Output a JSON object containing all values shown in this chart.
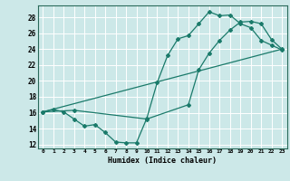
{
  "xlabel": "Humidex (Indice chaleur)",
  "ylabel": "",
  "bg_color": "#cce8e8",
  "grid_color": "#ffffff",
  "line_color": "#1a7a6a",
  "xlim": [
    -0.5,
    23.5
  ],
  "ylim": [
    11.5,
    29.5
  ],
  "xticks": [
    0,
    1,
    2,
    3,
    4,
    5,
    6,
    7,
    8,
    9,
    10,
    11,
    12,
    13,
    14,
    15,
    16,
    17,
    18,
    19,
    20,
    21,
    22,
    23
  ],
  "yticks": [
    12,
    14,
    16,
    18,
    20,
    22,
    24,
    26,
    28
  ],
  "series1_x": [
    0,
    1,
    2,
    3,
    4,
    5,
    6,
    7,
    8,
    9,
    10,
    11,
    12,
    13,
    14,
    15,
    16,
    17,
    18,
    19,
    20,
    21,
    22,
    23
  ],
  "series1_y": [
    16.1,
    16.4,
    16.1,
    15.2,
    14.3,
    14.5,
    13.5,
    12.3,
    12.2,
    12.2,
    15.3,
    19.8,
    23.2,
    25.3,
    25.7,
    27.2,
    28.7,
    28.2,
    28.3,
    27.2,
    26.7,
    25.1,
    24.5,
    23.9
  ],
  "series2_x": [
    0,
    3,
    10,
    14,
    15,
    16,
    17,
    18,
    19,
    20,
    21,
    22,
    23
  ],
  "series2_y": [
    16.1,
    16.3,
    15.2,
    17.0,
    21.4,
    23.5,
    25.1,
    26.4,
    27.4,
    27.5,
    27.2,
    25.2,
    24.0
  ],
  "series3_x": [
    0,
    23
  ],
  "series3_y": [
    16.1,
    24.0
  ]
}
